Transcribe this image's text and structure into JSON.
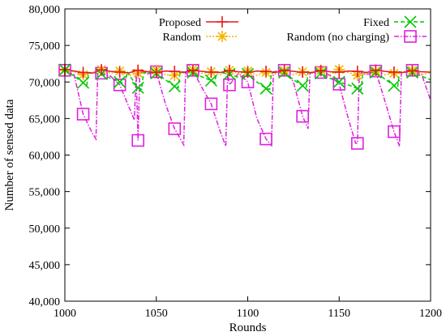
{
  "chart_data": {
    "type": "line",
    "xlabel": "Rounds",
    "ylabel": "Number of sensed data",
    "xlim": [
      1000,
      1200
    ],
    "ylim": [
      40000,
      80000
    ],
    "x_ticks": [
      1000,
      1050,
      1100,
      1150,
      1200
    ],
    "x_tick_labels": [
      "1000",
      "1050",
      "1100",
      "1150",
      "1200"
    ],
    "y_ticks": [
      40000,
      45000,
      50000,
      55000,
      60000,
      65000,
      70000,
      75000,
      80000
    ],
    "y_tick_labels": [
      "40,000",
      "45,000",
      "50,000",
      "55,000",
      "60,000",
      "65,000",
      "70,000",
      "75,000",
      "80,000"
    ],
    "grid": false,
    "legend_placement": "top, two columns",
    "series": [
      {
        "name": "Proposed",
        "color": "#e41a1c",
        "marker": "plus",
        "dash": "solid",
        "points": [
          [
            1000,
            71700
          ],
          [
            1005,
            71500
          ],
          [
            1010,
            71300
          ],
          [
            1015,
            71200
          ],
          [
            1020,
            71650
          ],
          [
            1025,
            71450
          ],
          [
            1030,
            71350
          ],
          [
            1035,
            71250
          ],
          [
            1040,
            71600
          ],
          [
            1045,
            71400
          ],
          [
            1050,
            71300
          ],
          [
            1055,
            71500
          ],
          [
            1060,
            71450
          ],
          [
            1065,
            71300
          ],
          [
            1070,
            71600
          ],
          [
            1075,
            71450
          ],
          [
            1080,
            71350
          ],
          [
            1085,
            71300
          ],
          [
            1090,
            71550
          ],
          [
            1095,
            71400
          ],
          [
            1100,
            71350
          ],
          [
            1105,
            71500
          ],
          [
            1110,
            71450
          ],
          [
            1115,
            71300
          ],
          [
            1120,
            71600
          ],
          [
            1125,
            71450
          ],
          [
            1130,
            71350
          ],
          [
            1135,
            71300
          ],
          [
            1140,
            71550
          ],
          [
            1145,
            71400
          ],
          [
            1150,
            71350
          ],
          [
            1155,
            71500
          ],
          [
            1160,
            71450
          ],
          [
            1165,
            71300
          ],
          [
            1170,
            71600
          ],
          [
            1175,
            71450
          ],
          [
            1180,
            71350
          ],
          [
            1185,
            71300
          ],
          [
            1190,
            71550
          ],
          [
            1195,
            71400
          ],
          [
            1200,
            71350
          ]
        ]
      },
      {
        "name": "Fixed",
        "color": "#00c800",
        "marker": "x",
        "dash": "dashed",
        "points": [
          [
            1000,
            71700
          ],
          [
            1005,
            70800
          ],
          [
            1010,
            69900
          ],
          [
            1012,
            69600
          ],
          [
            1013,
            71300
          ],
          [
            1020,
            71100
          ],
          [
            1025,
            70500
          ],
          [
            1030,
            70000
          ],
          [
            1033,
            69700
          ],
          [
            1034,
            71400
          ],
          [
            1040,
            69200
          ],
          [
            1042,
            69000
          ],
          [
            1043,
            71300
          ],
          [
            1050,
            71200
          ],
          [
            1055,
            70300
          ],
          [
            1060,
            69400
          ],
          [
            1062,
            69200
          ],
          [
            1063,
            71400
          ],
          [
            1070,
            71300
          ],
          [
            1075,
            70700
          ],
          [
            1080,
            70200
          ],
          [
            1082,
            69900
          ],
          [
            1083,
            71400
          ],
          [
            1090,
            71100
          ],
          [
            1095,
            70600
          ],
          [
            1100,
            71100
          ],
          [
            1105,
            70000
          ],
          [
            1110,
            69100
          ],
          [
            1112,
            69000
          ],
          [
            1113,
            71300
          ],
          [
            1120,
            71300
          ],
          [
            1125,
            70300
          ],
          [
            1130,
            69500
          ],
          [
            1132,
            69300
          ],
          [
            1133,
            71400
          ],
          [
            1140,
            71200
          ],
          [
            1145,
            70500
          ],
          [
            1150,
            70000
          ],
          [
            1155,
            69600
          ],
          [
            1160,
            69100
          ],
          [
            1162,
            68900
          ],
          [
            1163,
            71300
          ],
          [
            1170,
            71300
          ],
          [
            1175,
            70400
          ],
          [
            1180,
            69500
          ],
          [
            1182,
            69300
          ],
          [
            1183,
            71400
          ],
          [
            1190,
            71300
          ],
          [
            1195,
            70800
          ],
          [
            1200,
            70300
          ]
        ]
      },
      {
        "name": "Random",
        "color": "#f4b400",
        "marker": "star",
        "dash": "dotted",
        "points": [
          [
            1000,
            71600
          ],
          [
            1005,
            71400
          ],
          [
            1010,
            71000
          ],
          [
            1015,
            71300
          ],
          [
            1020,
            71700
          ],
          [
            1025,
            71200
          ],
          [
            1030,
            71500
          ],
          [
            1035,
            70900
          ],
          [
            1040,
            71200
          ],
          [
            1045,
            71500
          ],
          [
            1050,
            71600
          ],
          [
            1055,
            71000
          ],
          [
            1060,
            70900
          ],
          [
            1065,
            71300
          ],
          [
            1070,
            71700
          ],
          [
            1075,
            71200
          ],
          [
            1080,
            71400
          ],
          [
            1085,
            71000
          ],
          [
            1090,
            71600
          ],
          [
            1095,
            71100
          ],
          [
            1100,
            71500
          ],
          [
            1105,
            70900
          ],
          [
            1110,
            71300
          ],
          [
            1115,
            71100
          ],
          [
            1120,
            71600
          ],
          [
            1125,
            71000
          ],
          [
            1130,
            71400
          ],
          [
            1135,
            71200
          ],
          [
            1140,
            71600
          ],
          [
            1145,
            71000
          ],
          [
            1150,
            71700
          ],
          [
            1155,
            71300
          ],
          [
            1160,
            70900
          ],
          [
            1165,
            71200
          ],
          [
            1170,
            71500
          ],
          [
            1175,
            71000
          ],
          [
            1180,
            71200
          ],
          [
            1185,
            71400
          ],
          [
            1190,
            71600
          ],
          [
            1195,
            71000
          ],
          [
            1200,
            71300
          ]
        ]
      },
      {
        "name": "Random (no charging)",
        "color": "#e020e0",
        "marker": "square",
        "dash": "dashdot",
        "points": [
          [
            1000,
            71600
          ],
          [
            1005,
            71000
          ],
          [
            1010,
            65600
          ],
          [
            1015,
            63000
          ],
          [
            1017,
            62200
          ],
          [
            1018,
            71400
          ],
          [
            1020,
            71200
          ],
          [
            1025,
            70800
          ],
          [
            1030,
            69600
          ],
          [
            1035,
            66600
          ],
          [
            1038,
            64800
          ],
          [
            1039,
            71200
          ],
          [
            1040,
            62000
          ],
          [
            1041,
            71400
          ],
          [
            1045,
            71100
          ],
          [
            1050,
            71400
          ],
          [
            1055,
            67000
          ],
          [
            1060,
            63600
          ],
          [
            1065,
            61400
          ],
          [
            1066,
            71300
          ],
          [
            1070,
            71600
          ],
          [
            1075,
            69200
          ],
          [
            1080,
            67000
          ],
          [
            1085,
            63200
          ],
          [
            1088,
            61200
          ],
          [
            1089,
            71100
          ],
          [
            1090,
            69600
          ],
          [
            1095,
            71200
          ],
          [
            1100,
            70000
          ],
          [
            1105,
            65000
          ],
          [
            1110,
            62200
          ],
          [
            1113,
            61300
          ],
          [
            1114,
            71400
          ],
          [
            1120,
            71600
          ],
          [
            1125,
            70000
          ],
          [
            1130,
            65300
          ],
          [
            1133,
            63600
          ],
          [
            1134,
            71200
          ],
          [
            1140,
            71300
          ],
          [
            1145,
            70900
          ],
          [
            1150,
            69700
          ],
          [
            1155,
            65000
          ],
          [
            1159,
            61600
          ],
          [
            1160,
            61600
          ],
          [
            1161,
            71300
          ],
          [
            1165,
            71000
          ],
          [
            1170,
            71500
          ],
          [
            1175,
            67400
          ],
          [
            1180,
            63200
          ],
          [
            1183,
            61200
          ],
          [
            1184,
            71300
          ],
          [
            1190,
            71600
          ],
          [
            1195,
            71100
          ],
          [
            1200,
            67500
          ]
        ]
      }
    ],
    "marker_points": {
      "Proposed": [
        1000,
        1010,
        1020,
        1030,
        1040,
        1050,
        1060,
        1070,
        1080,
        1090,
        1100,
        1110,
        1120,
        1130,
        1140,
        1150,
        1160,
        1170,
        1180,
        1190
      ],
      "Fixed": [
        1000,
        1010,
        1020,
        1030,
        1040,
        1050,
        1060,
        1070,
        1080,
        1090,
        1100,
        1110,
        1120,
        1130,
        1140,
        1150,
        1160,
        1170,
        1180,
        1190
      ],
      "Random": [
        1000,
        1010,
        1020,
        1030,
        1040,
        1050,
        1060,
        1070,
        1080,
        1090,
        1100,
        1110,
        1120,
        1130,
        1140,
        1150,
        1160,
        1170,
        1180,
        1190
      ],
      "Random (no charging)": [
        1000,
        1010,
        1020,
        1030,
        1040,
        1050,
        1060,
        1070,
        1080,
        1090,
        1100,
        1110,
        1120,
        1130,
        1140,
        1150,
        1160,
        1170,
        1180,
        1190
      ]
    }
  }
}
